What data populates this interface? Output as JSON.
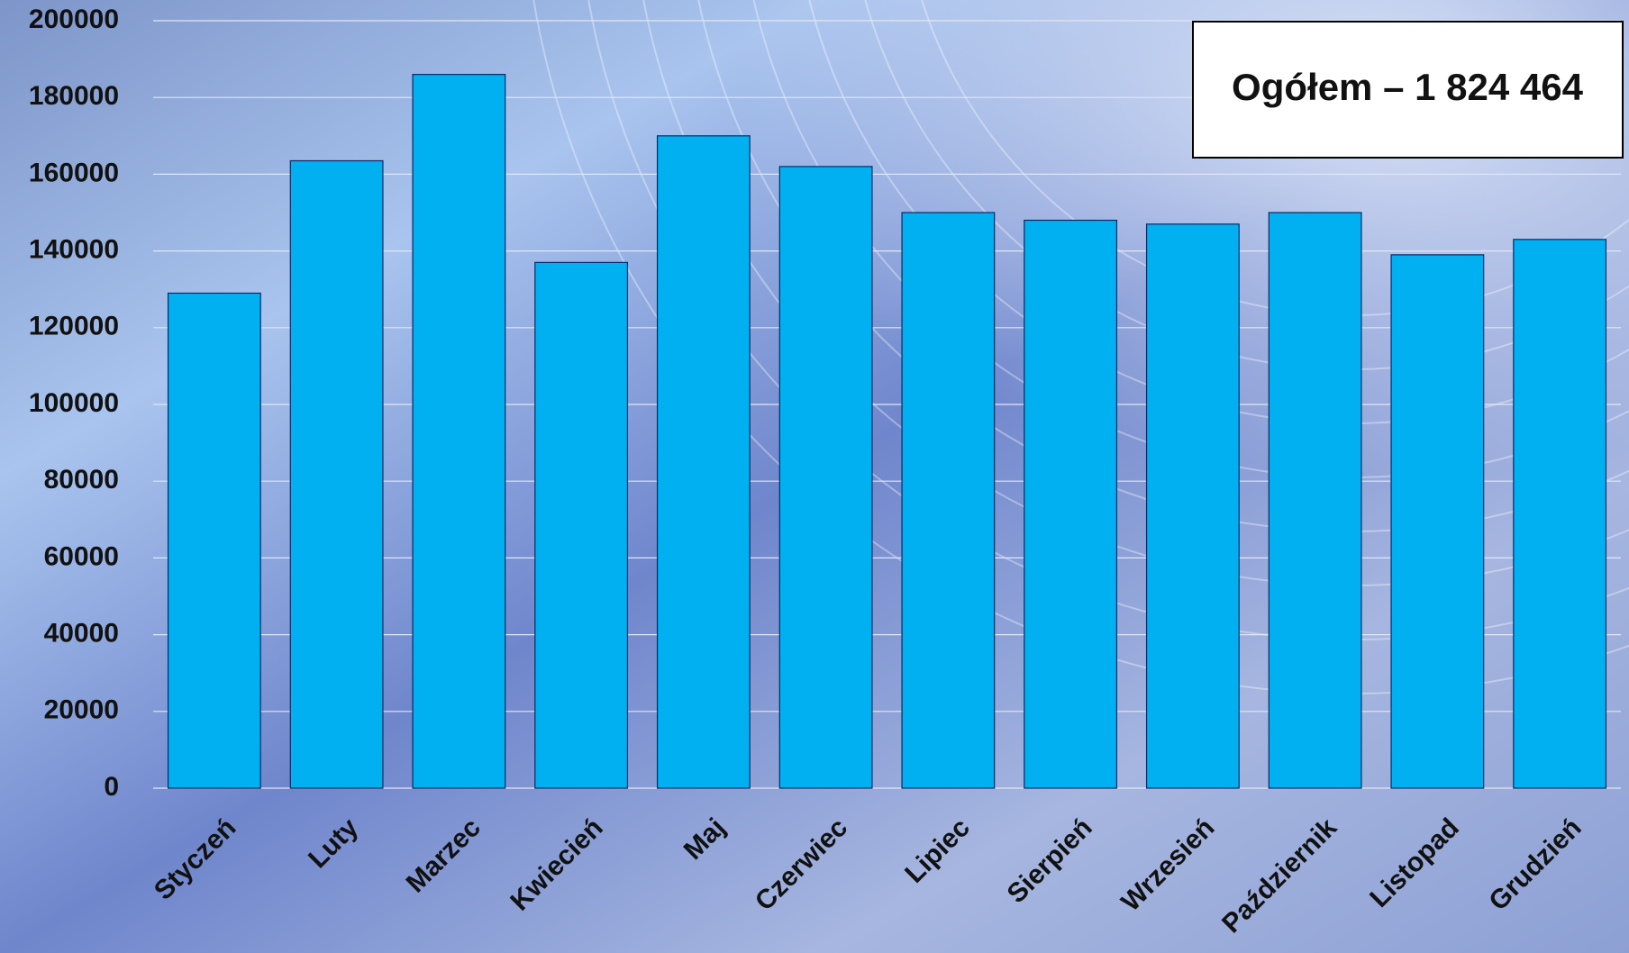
{
  "chart_data": {
    "type": "bar",
    "annotation": "Ogółem – 1 824 464",
    "categories": [
      "Styczeń",
      "Luty",
      "Marzec",
      "Kwiecień",
      "Maj",
      "Czerwiec",
      "Lipiec",
      "Sierpień",
      "Wrzesień",
      "Październik",
      "Listopad",
      "Grudzień"
    ],
    "values": [
      129000,
      163500,
      186000,
      137000,
      170000,
      162000,
      150000,
      148000,
      147000,
      150000,
      139000,
      143000
    ],
    "color": "#00b0f0",
    "ylim": [
      0,
      200000
    ],
    "yticks": [
      0,
      20000,
      40000,
      60000,
      80000,
      100000,
      120000,
      140000,
      160000,
      180000,
      200000
    ],
    "grid": true
  }
}
